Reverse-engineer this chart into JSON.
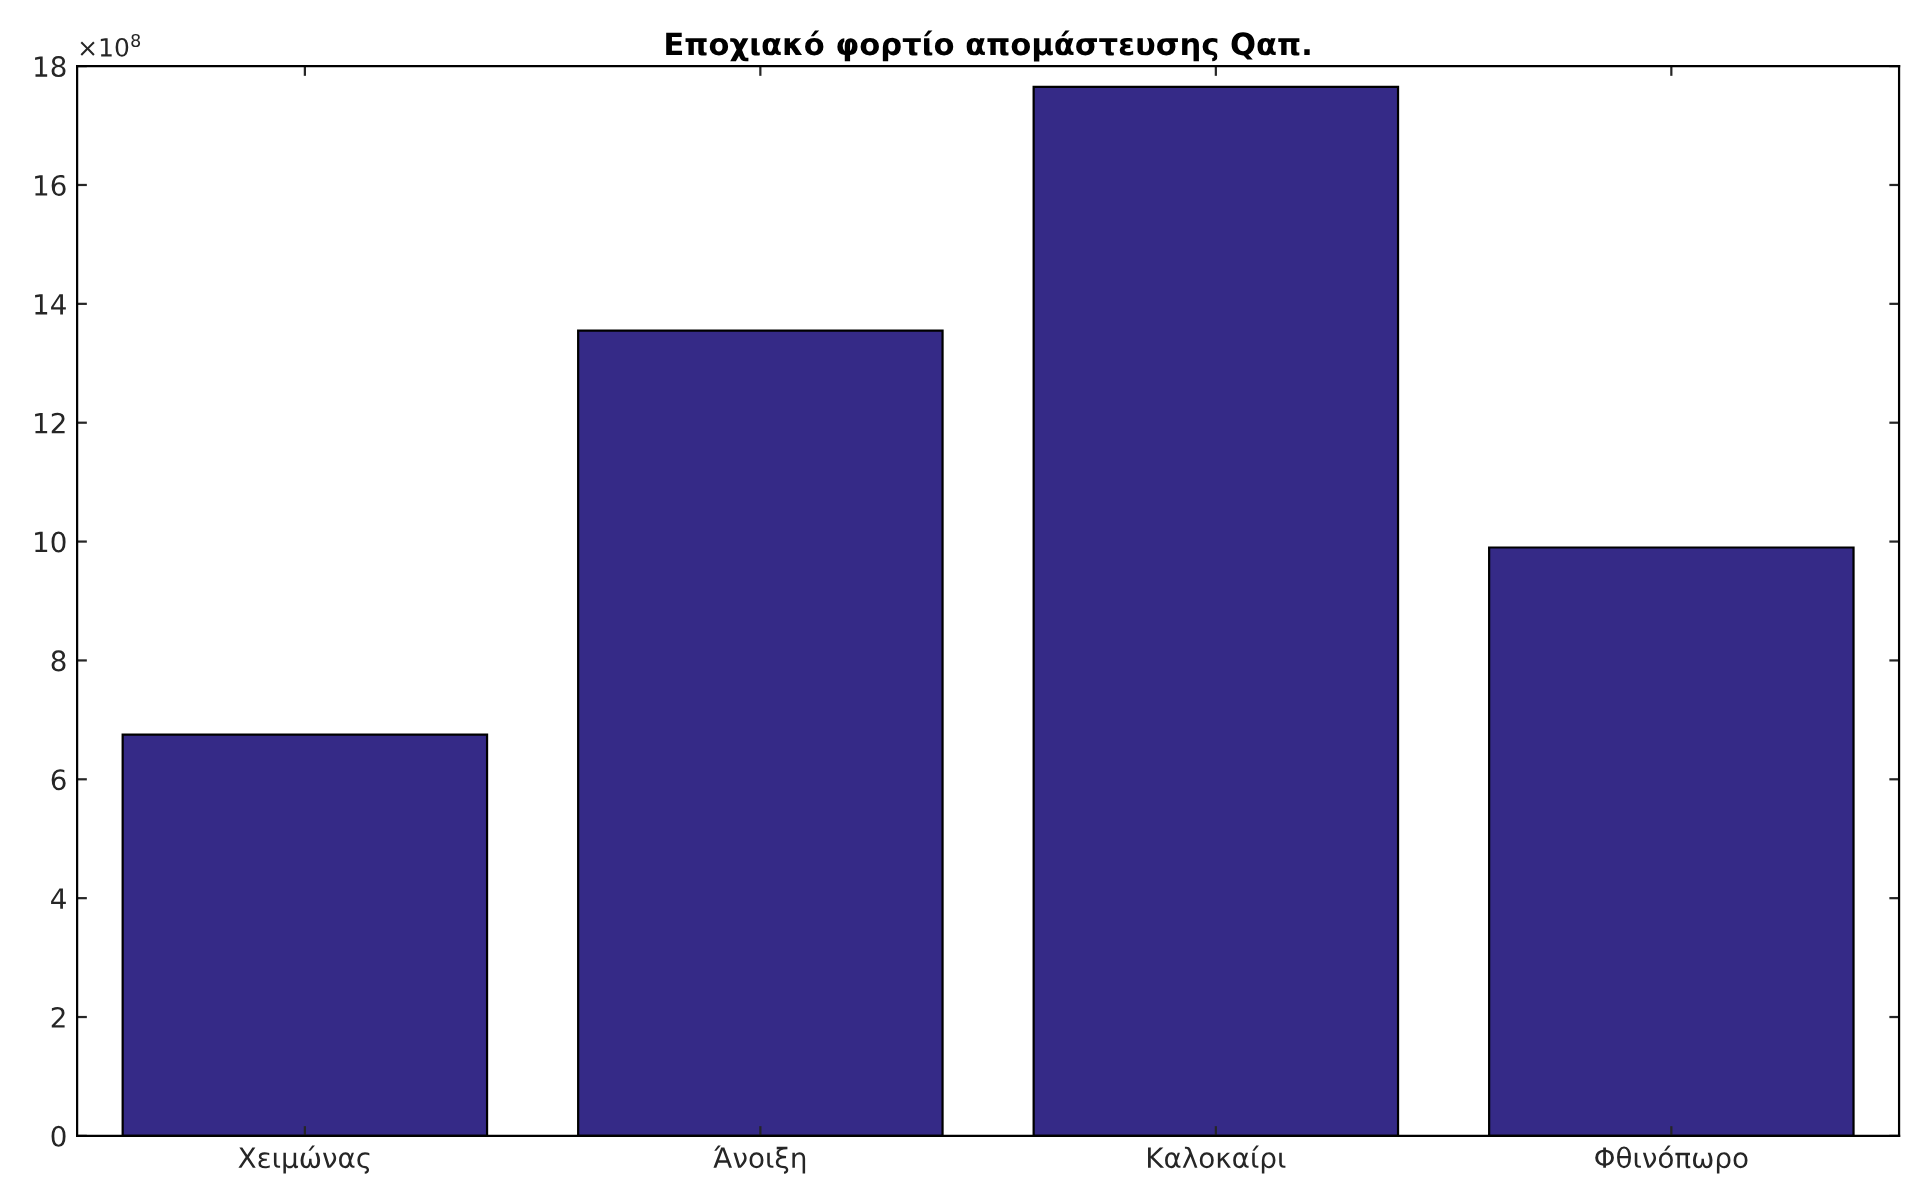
{
  "chart_data": {
    "type": "bar",
    "title": "Εποχιακό φορτίο απομάστευσης Qαπ.",
    "categories": [
      "Χειμώνας",
      "Άνοιξη",
      "Καλοκαίρι",
      "Φθινόπωρο"
    ],
    "values": [
      6.75,
      13.55,
      17.65,
      9.9
    ],
    "color": "#352a87",
    "ylim": [
      0,
      18
    ],
    "yticks": [
      0,
      2,
      4,
      6,
      8,
      10,
      12,
      14,
      16,
      18
    ],
    "annotations": [
      "×10$^{8}$"
    ],
    "grid": false,
    "legend": false
  }
}
